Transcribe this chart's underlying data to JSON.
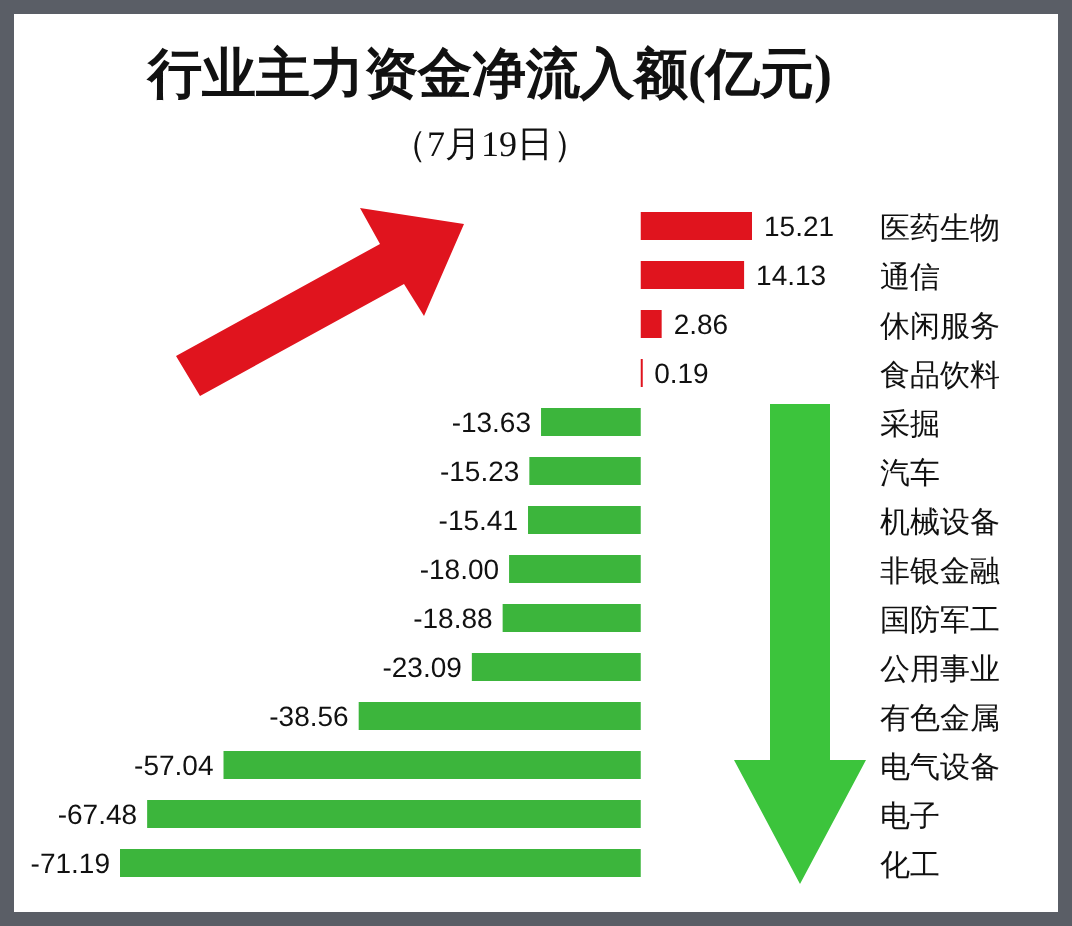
{
  "chart_data": {
    "type": "bar",
    "orientation": "horizontal",
    "title": "行业主力资金净流入额(亿元)",
    "subtitle": "（7月19日）",
    "categories": [
      "医药生物",
      "通信",
      "休闲服务",
      "食品饮料",
      "采掘",
      "汽车",
      "机械设备",
      "非银金融",
      "国防军工",
      "公用事业",
      "有色金属",
      "电气设备",
      "电子",
      "化工"
    ],
    "values": [
      15.21,
      14.13,
      2.86,
      0.19,
      -13.63,
      -15.23,
      -15.41,
      -18.0,
      -18.88,
      -23.09,
      -38.56,
      -57.04,
      -67.48,
      -71.19
    ],
    "colors": [
      "#e0141e",
      "#e0141e",
      "#e0141e",
      "#e0141e",
      "#3cb53c",
      "#3cb53c",
      "#3cb53c",
      "#3cb53c",
      "#3cb53c",
      "#3cb53c",
      "#3cb53c",
      "#3cb53c",
      "#3cb53c",
      "#3cb53c"
    ],
    "value_labels": [
      "15.21",
      "14.13",
      "2.86",
      "0.19",
      "-13.63",
      "-15.23",
      "-15.41",
      "-18.00",
      "-18.88",
      "-23.09",
      "-38.56",
      "-57.04",
      "-67.48",
      "-71.19"
    ]
  }
}
